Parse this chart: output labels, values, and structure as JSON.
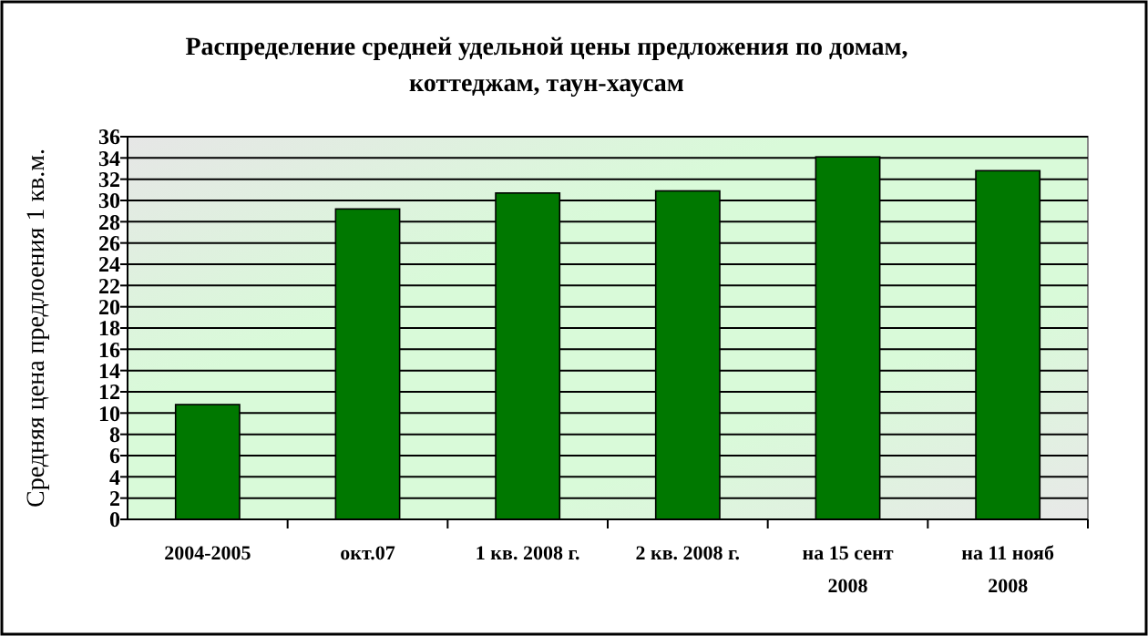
{
  "chart_data": {
    "type": "bar",
    "title": "Распределение средней удельной цены предложения по домам, коттеджам, таун-хаусам",
    "ylabel": "Средняя цена предлоения 1 кв.м.",
    "categories": [
      "2004-2005",
      "окт.07",
      "1 кв. 2008 г.",
      "2 кв. 2008 г.",
      "на 15 сент 2008",
      "на 11 нояб 2008"
    ],
    "values": [
      10.8,
      29.2,
      30.7,
      30.9,
      34.1,
      32.8
    ],
    "color": "#007800",
    "ylim": [
      0,
      36
    ],
    "yticks": [
      0,
      2,
      4,
      6,
      8,
      10,
      12,
      14,
      16,
      18,
      20,
      22,
      24,
      26,
      28,
      30,
      32,
      34,
      36
    ],
    "grid": "y"
  }
}
